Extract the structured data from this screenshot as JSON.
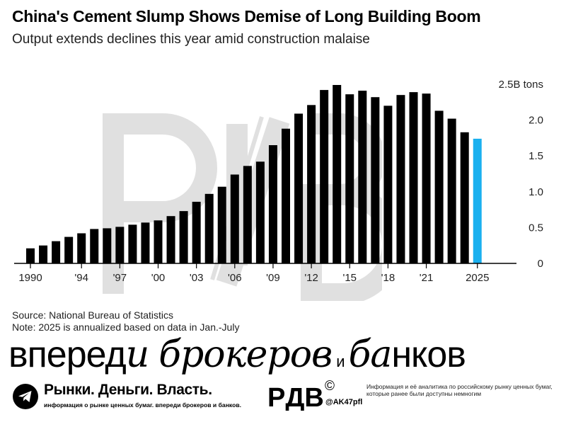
{
  "header": {
    "title": "China's Cement Slump Shows Demise of Long Building Boom",
    "subtitle": "Output extends declines this year amid construction malaise"
  },
  "chart_data": {
    "type": "bar",
    "title": "China's Cement Slump Shows Demise of Long Building Boom",
    "subtitle": "Output extends declines this year amid construction malaise",
    "categories": [
      "1990",
      "1991",
      "1992",
      "1993",
      "1994",
      "1995",
      "1996",
      "1997",
      "1998",
      "1999",
      "2000",
      "2001",
      "2002",
      "2003",
      "2004",
      "2005",
      "2006",
      "2007",
      "2008",
      "2009",
      "2010",
      "2011",
      "2012",
      "2013",
      "2014",
      "2015",
      "2016",
      "2017",
      "2018",
      "2019",
      "2020",
      "2021",
      "2022",
      "2023",
      "2024",
      "2025"
    ],
    "values": [
      0.21,
      0.25,
      0.31,
      0.37,
      0.42,
      0.48,
      0.49,
      0.51,
      0.54,
      0.57,
      0.6,
      0.66,
      0.73,
      0.86,
      0.97,
      1.07,
      1.24,
      1.36,
      1.42,
      1.65,
      1.88,
      2.09,
      2.21,
      2.42,
      2.49,
      2.36,
      2.41,
      2.32,
      2.2,
      2.35,
      2.39,
      2.37,
      2.13,
      2.02,
      1.83,
      1.74
    ],
    "highlight_color": "#1ab0ef",
    "bar_color": "#000000",
    "highlight_index": 35,
    "x_tick_labels": [
      "1990",
      "'94",
      "'97",
      "'00",
      "'03",
      "'06",
      "'09",
      "'12",
      "'15",
      "'18",
      "'21",
      "2025"
    ],
    "x_tick_years": [
      1990,
      1994,
      1997,
      2000,
      2003,
      2006,
      2009,
      2012,
      2015,
      2018,
      2021,
      2025
    ],
    "y_ticks": [
      0,
      0.5,
      1.0,
      1.5,
      2.0,
      2.5
    ],
    "y_tick_labels": [
      "0",
      "0.5",
      "1.0",
      "1.5",
      "2.0",
      "2.5B tons"
    ],
    "ylim": [
      0,
      2.5
    ],
    "grid": false,
    "xlabel": "",
    "ylabel": ""
  },
  "notes": {
    "source": "Source: National Bureau of Statistics",
    "note": "Note: 2025 is annualized based on data in Jan.-July"
  },
  "watermark": {
    "text": "PДB"
  },
  "slogan": {
    "part1": "вперед",
    "part2": "и",
    "part3": "брокеров",
    "connector": "и",
    "part4": "ба",
    "part5": "нков"
  },
  "footer": {
    "brand": "Рынки. Деньги. Власть.",
    "tagline": "информация о рынке ценных бумаг. впереди брокеров и банков.",
    "logo_text": "PДB",
    "copyright": "©",
    "handle": "@AK47pfl",
    "disclaimer": "Информация и её аналитика по российскому рынку ценных бумаг, которые ранее были доступны немногим"
  },
  "colors": {
    "accent": "#1ab0ef",
    "telegram": "#000000",
    "watermark": "#dddddd"
  },
  "icons": [
    "telegram-icon"
  ]
}
